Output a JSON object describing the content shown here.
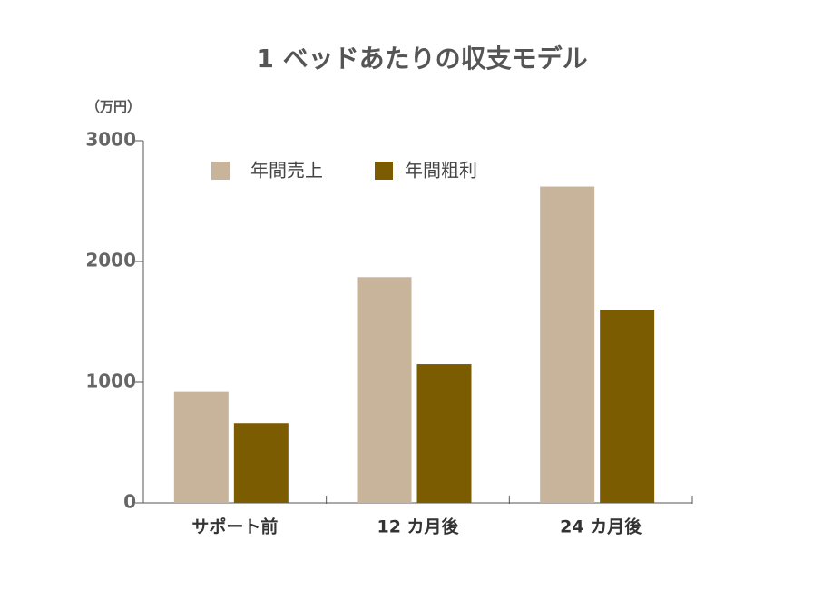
{
  "chart_data": {
    "type": "bar",
    "title": "1 ベッドあたりの収支モデル",
    "y_label": "（万円）",
    "categories": [
      "サポート前",
      "12 カ月後",
      "24 カ月後"
    ],
    "series": [
      {
        "name": "年間売上",
        "color": "#c8b39b",
        "values": [
          920,
          1870,
          2620
        ]
      },
      {
        "name": "年間粗利",
        "color": "#7b5c00",
        "values": [
          660,
          1150,
          1600
        ]
      }
    ],
    "ylim": [
      0,
      3000
    ],
    "yticks": [
      0,
      1000,
      2000,
      3000
    ]
  }
}
